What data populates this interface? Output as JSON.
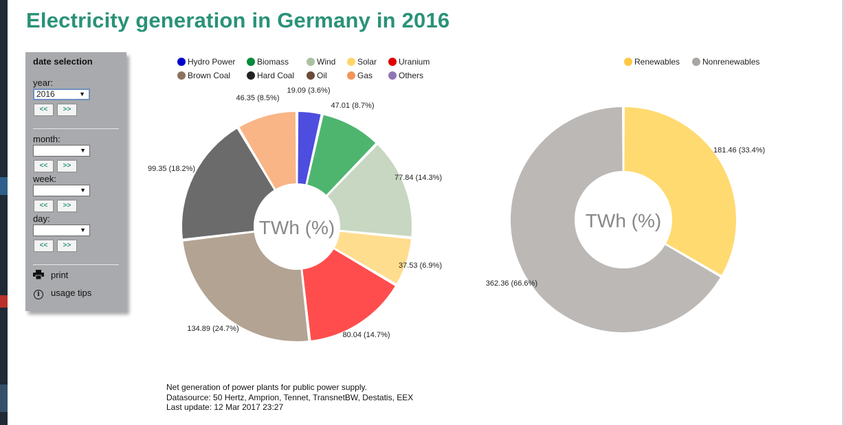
{
  "page": {
    "title": "Electricity generation in Germany in 2016"
  },
  "panel": {
    "heading": "date selection",
    "year_label": "year:",
    "year_value": "2016",
    "month_label": "month:",
    "month_value": "",
    "week_label": "week:",
    "week_value": "",
    "day_label": "day:",
    "day_value": "",
    "prev_label": "<<",
    "next_label": ">>",
    "print_label": "print",
    "print_icon": "printer-icon",
    "tips_label": "usage tips",
    "tips_icon": "info-icon",
    "select_arrow": "▼"
  },
  "footer": {
    "line1": "Net generation of power plants for public power supply.",
    "line2": "Datasource: 50 Hertz, Amprion, Tennet, TransnetBW, Destatis, EEX",
    "line3": "Last update: 12 Mar 2017 23:27"
  },
  "chart_data": [
    {
      "type": "pie",
      "style": "donut",
      "center_text": "TWh (%)",
      "legend": [
        {
          "name": "Hydro Power",
          "color": "#0000cc"
        },
        {
          "name": "Biomass",
          "color": "#008a3c"
        },
        {
          "name": "Wind",
          "color": "#a9c2a2"
        },
        {
          "name": "Solar",
          "color": "#ffd56a"
        },
        {
          "name": "Uranium",
          "color": "#e00000"
        },
        {
          "name": "Brown Coal",
          "color": "#8c7460"
        },
        {
          "name": "Hard Coal",
          "color": "#222222"
        },
        {
          "name": "Oil",
          "color": "#6b4b39"
        },
        {
          "name": "Gas",
          "color": "#f2955a"
        },
        {
          "name": "Others",
          "color": "#8f76b5"
        }
      ],
      "slices": [
        {
          "name": "Hydro Power",
          "value": 19.09,
          "label": "19.09 (3.6%)",
          "color": "#4d4ddf"
        },
        {
          "name": "Biomass",
          "value": 47.01,
          "label": "47.01 (8.7%)",
          "color": "#4eb56f"
        },
        {
          "name": "Wind",
          "value": 77.84,
          "label": "77.84 (14.3%)",
          "color": "#c7d7c2"
        },
        {
          "name": "Solar",
          "value": 37.53,
          "label": "37.53 (6.9%)",
          "color": "#ffdd8f"
        },
        {
          "name": "Uranium",
          "value": 80.04,
          "label": "80.04 (14.7%)",
          "color": "#ff4d4d"
        },
        {
          "name": "Brown Coal",
          "value": 134.89,
          "label": "134.89 (24.7%)",
          "color": "#b3a393"
        },
        {
          "name": "Hard Coal",
          "value": 99.35,
          "label": "99.35 (18.2%)",
          "color": "#6b6b6b"
        },
        {
          "name": "Oil",
          "value": 0,
          "label": "",
          "color": "#8b6e5c"
        },
        {
          "name": "Gas",
          "value": 46.35,
          "label": "46.35 (8.5%)",
          "color": "#f9b585"
        }
      ]
    },
    {
      "type": "pie",
      "style": "donut",
      "center_text": "TWh (%)",
      "legend": [
        {
          "name": "Renewables",
          "color": "#fdc944"
        },
        {
          "name": "Nonrenewables",
          "color": "#a8a5a3"
        }
      ],
      "slices": [
        {
          "name": "Renewables",
          "value": 181.46,
          "label": "181.46 (33.4%)",
          "color": "#ffda70"
        },
        {
          "name": "Nonrenewables",
          "value": 362.36,
          "label": "362.36 (66.6%)",
          "color": "#bbb8b5"
        }
      ]
    }
  ]
}
